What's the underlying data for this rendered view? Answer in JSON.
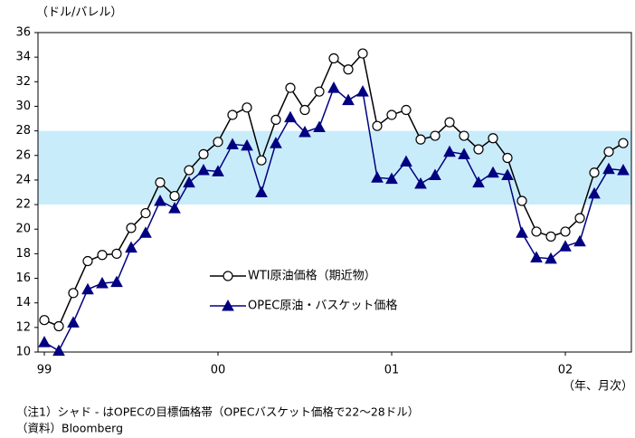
{
  "chart_data": {
    "type": "line",
    "y_label": "（ドル/バレル）",
    "x_label": "（年、月次）",
    "categories": [
      "99",
      null,
      null,
      null,
      null,
      null,
      null,
      null,
      null,
      null,
      null,
      null,
      "00",
      null,
      null,
      null,
      null,
      null,
      null,
      null,
      null,
      null,
      null,
      null,
      "01",
      null,
      null,
      null,
      null,
      null,
      null,
      null,
      null,
      null,
      null,
      null,
      "02",
      null,
      null,
      null,
      null
    ],
    "series": [
      {
        "name": "WTI原油価格（期近物）",
        "color": "#000000",
        "marker": "circle",
        "values": [
          12.6,
          12.1,
          14.8,
          17.4,
          17.9,
          18.0,
          20.1,
          21.3,
          23.8,
          22.7,
          24.8,
          26.1,
          27.1,
          29.3,
          29.9,
          25.6,
          28.9,
          31.5,
          29.7,
          31.2,
          33.9,
          33.0,
          34.3,
          28.4,
          29.3,
          29.7,
          27.3,
          27.6,
          28.7,
          27.6,
          26.5,
          27.4,
          25.8,
          22.3,
          19.8,
          19.4,
          19.8,
          20.9,
          24.6,
          26.3,
          27.0
        ]
      },
      {
        "name": "OPEC原油・バスケット価格",
        "color": "#000080",
        "marker": "triangle",
        "values": [
          10.8,
          10.1,
          12.4,
          15.1,
          15.6,
          15.7,
          18.5,
          19.7,
          22.3,
          21.7,
          23.8,
          24.8,
          24.7,
          26.9,
          26.8,
          23.0,
          27.0,
          29.1,
          27.9,
          28.3,
          31.5,
          30.5,
          31.2,
          24.2,
          24.1,
          25.5,
          23.7,
          24.4,
          26.3,
          26.1,
          23.8,
          24.6,
          24.4,
          19.7,
          17.7,
          17.6,
          18.6,
          19.0,
          22.9,
          24.9,
          24.8
        ]
      }
    ],
    "band": [
      22,
      28
    ],
    "band_color": "#c9ecfb",
    "ylim": [
      10,
      36
    ],
    "yticks": [
      10,
      12,
      14,
      16,
      18,
      20,
      22,
      24,
      26,
      28,
      30,
      32,
      34,
      36
    ],
    "notes": [
      "（注1）シャド - はOPECの目標価格帯（OPECバスケット価格で22～28ドル）",
      "（資料）Bloomberg"
    ]
  }
}
